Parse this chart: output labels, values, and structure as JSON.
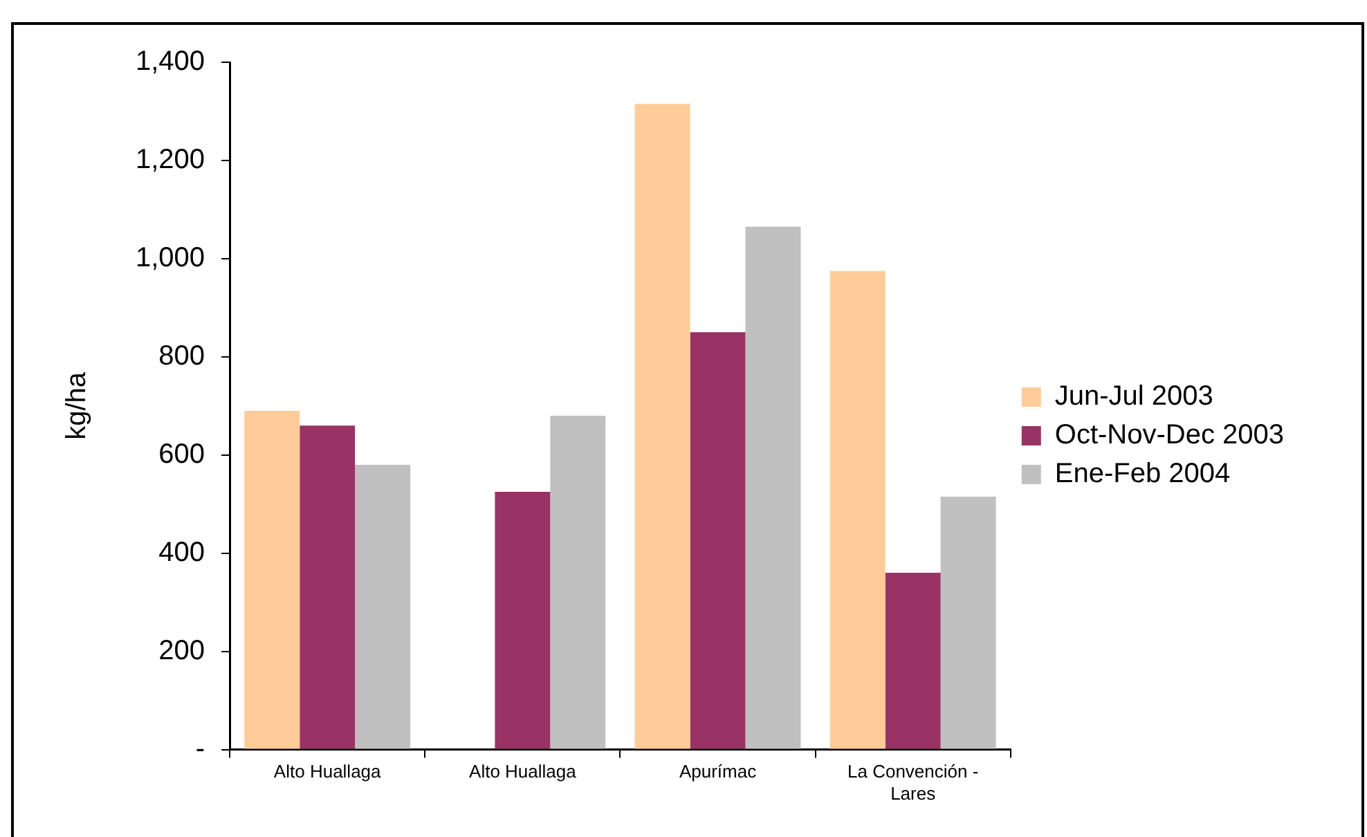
{
  "chart_data": {
    "type": "bar",
    "ylabel": "kg/ha",
    "categories": [
      "Alto Huallaga",
      "Alto Huallaga",
      "Apurímac",
      "La Convención - Lares"
    ],
    "series": [
      {
        "name": "Jun-Jul 2003",
        "color": "#ffcc99",
        "values": [
          690,
          null,
          1315,
          975
        ]
      },
      {
        "name": "Oct-Nov-Dec 2003",
        "color": "#993366",
        "values": [
          660,
          525,
          850,
          360
        ]
      },
      {
        "name": "Ene-Feb 2004",
        "color": "#c0c0c0",
        "values": [
          580,
          680,
          1065,
          515
        ]
      }
    ],
    "ylim": [
      0,
      1400
    ],
    "yticks": [
      {
        "value": 0,
        "label": "-"
      },
      200,
      400,
      600,
      800,
      {
        "value": 1000,
        "label": "1,000"
      },
      {
        "value": 1200,
        "label": "1,200"
      },
      {
        "value": 1400,
        "label": "1,400"
      }
    ],
    "grid": false,
    "legend": "right"
  }
}
